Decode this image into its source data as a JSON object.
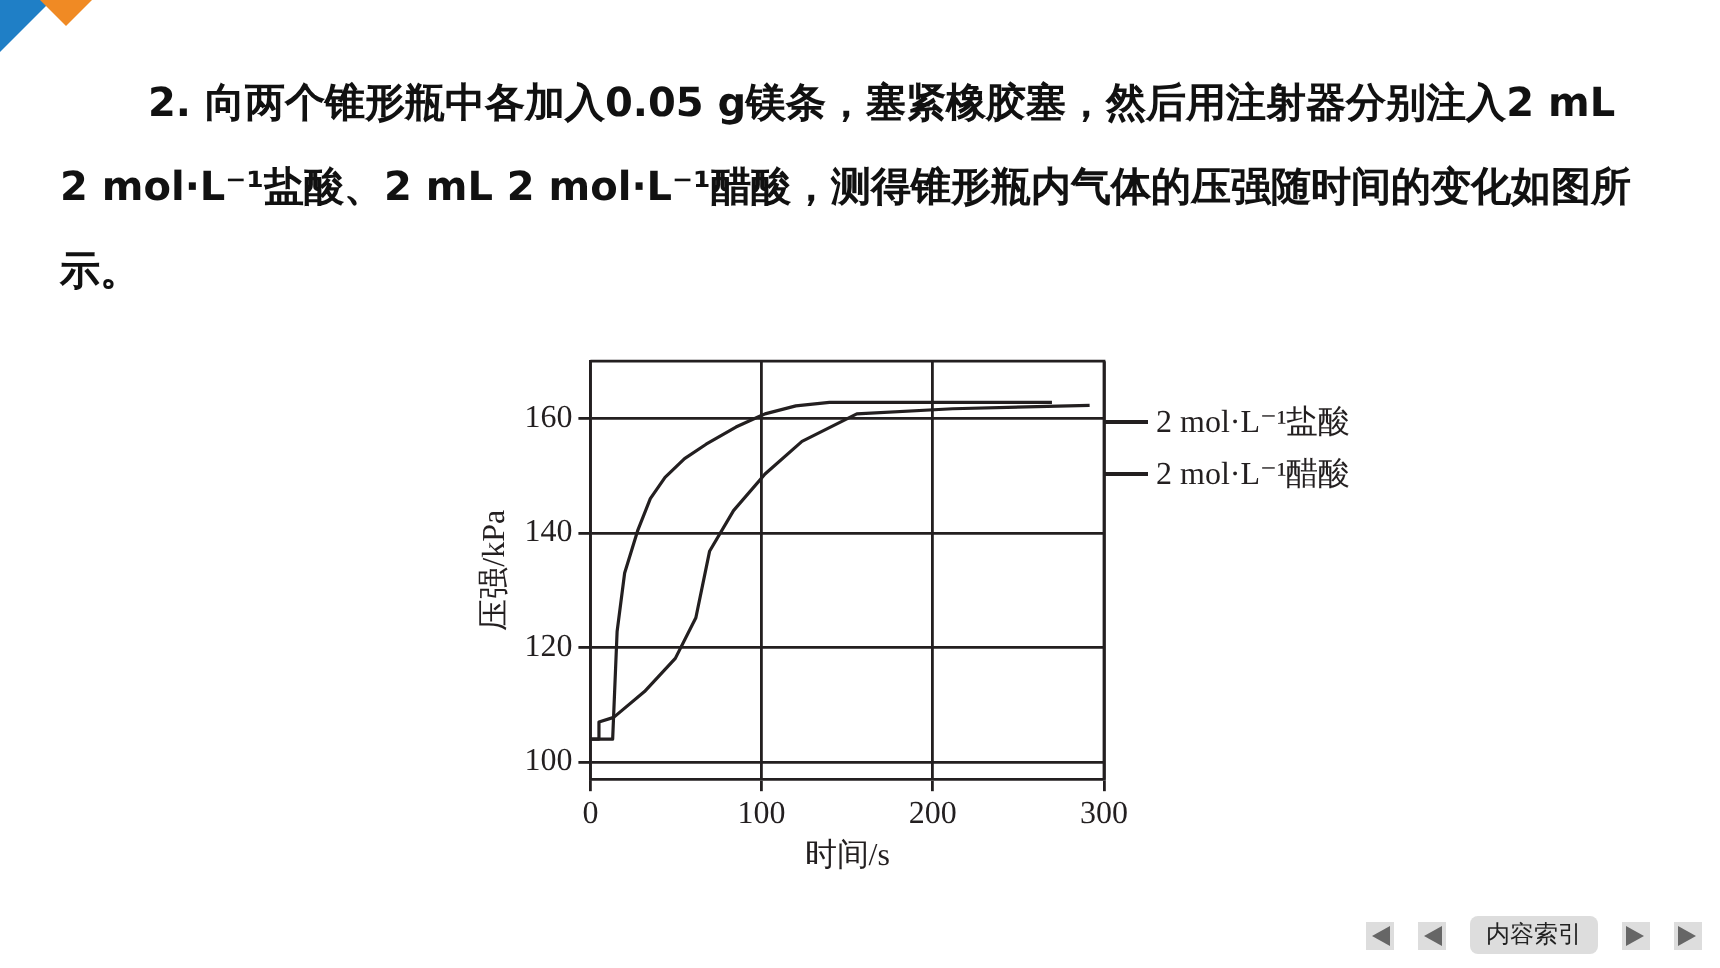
{
  "chart_data": {
    "type": "line",
    "title": "2. 向两个锥形瓶中各加入0.05 g镁条，塞紧橡胶塞，然后用注射器分别注入2 mL 2 mol·L⁻¹盐酸、2 mL 2 mol·L⁻¹醋酸，测得锥形瓶内气体的压强随时间的变化如图所示。",
    "xlabel": "时间/s",
    "ylabel": "压强/kPa",
    "series": [
      {
        "name": "2 mol·L⁻¹盐酸",
        "color": "#231f20",
        "x": [
          0,
          13,
          15.6,
          20,
          27.6,
          35,
          43.6,
          55,
          67.6,
          85,
          102,
          120,
          139.6,
          200,
          269.6
        ],
        "values": [
          104,
          104,
          122.8,
          133,
          140.4,
          146,
          149.7,
          153,
          155.5,
          158.5,
          160.8,
          162.2,
          162.8,
          162.8,
          162.8
        ]
      },
      {
        "name": "2 mol·L⁻¹醋酸",
        "color": "#231f20",
        "x": [
          0,
          5,
          5,
          13.6,
          31.6,
          49.6,
          61.6,
          69.6,
          83.6,
          102,
          123.6,
          155.6,
          211.6,
          291.6
        ],
        "values": [
          104,
          104,
          107,
          107.8,
          112.3,
          118.1,
          125.2,
          136.8,
          143.9,
          150.3,
          156,
          160.8,
          161.7,
          162.3
        ]
      }
    ],
    "xlim": [
      0,
      300
    ],
    "xticks": [
      0,
      100,
      200,
      300
    ],
    "ylim": [
      97,
      170
    ],
    "yticks": [
      100,
      120,
      140,
      160
    ],
    "grid": true,
    "legend": "right",
    "marker": "none",
    "line_style": "solid",
    "annotations": [
      "内容索引"
    ]
  }
}
